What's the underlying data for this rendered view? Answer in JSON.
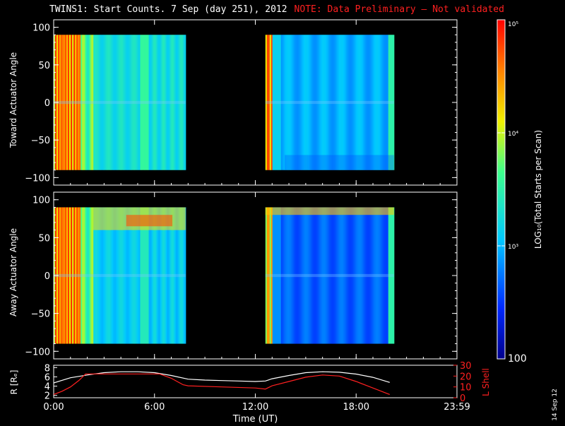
{
  "title": {
    "main": "TWINS1: Start Counts.  7 Sep (day 251), 2012",
    "note": "NOTE: Data Preliminary – Not validated"
  },
  "stamp": "14 Sep 12",
  "colors": {
    "background": "#000000",
    "axis": "#ffffff",
    "note": "#ff2020",
    "lshell": "#ff2020",
    "radius": "#ffffff"
  },
  "chart_data": [
    {
      "type": "heatmap",
      "name_label": "Toward Actuator Angle",
      "ylabel": "Toward Actuator Angle",
      "yticks": [
        "100",
        "50",
        "0",
        "−50",
        "−100"
      ],
      "ytick_values": [
        100,
        50,
        0,
        -50,
        -100
      ],
      "ylim": [
        -110,
        110
      ],
      "data_ylim": [
        -90,
        90
      ],
      "xlim_hours": [
        0,
        24
      ],
      "segments_hours": [
        [
          0,
          7.85
        ],
        [
          12.6,
          20.25
        ]
      ],
      "colormap": "rainbow",
      "log_scale": true
    },
    {
      "type": "heatmap",
      "name_label": "Away Actuator Angle",
      "ylabel": "Away Actuator Angle",
      "yticks": [
        "100",
        "50",
        "0",
        "−50",
        "−100"
      ],
      "ytick_values": [
        100,
        50,
        0,
        -50,
        -100
      ],
      "ylim": [
        -110,
        110
      ],
      "data_ylim": [
        -90,
        90
      ],
      "xlim_hours": [
        0,
        24
      ],
      "segments_hours": [
        [
          0,
          7.85
        ],
        [
          12.6,
          20.25
        ]
      ],
      "colormap": "rainbow",
      "log_scale": true
    },
    {
      "type": "line",
      "ylabel_left": "R [Rₑ]",
      "ylabel_right": "L Shell",
      "left_ticks": [
        "8",
        "6",
        "4",
        "2"
      ],
      "left_tick_values": [
        8,
        6,
        4,
        2
      ],
      "left_ylim": [
        1.5,
        8.5
      ],
      "right_ticks": [
        "30",
        "20",
        "10",
        "0"
      ],
      "right_tick_values": [
        30,
        20,
        10,
        0
      ],
      "right_ylim": [
        0,
        30
      ],
      "xlabel": "Time (UT)",
      "xticks": [
        "0:00",
        "6:00",
        "12:00",
        "18:00",
        "23:59"
      ],
      "xtick_values": [
        0,
        6,
        12,
        18,
        24
      ],
      "series": [
        {
          "axis": "left",
          "x": [
            0,
            1,
            2,
            3,
            4,
            5,
            6,
            7,
            8,
            9,
            10,
            11,
            12,
            12.6,
            13,
            14,
            15,
            16,
            17,
            18,
            19,
            20
          ],
          "y": [
            4.7,
            5.8,
            6.4,
            6.9,
            7.1,
            7.1,
            6.9,
            6.3,
            5.5,
            5.3,
            5.2,
            5.1,
            5.0,
            5.1,
            5.6,
            6.3,
            6.9,
            7.1,
            7.0,
            6.6,
            5.9,
            4.8
          ]
        },
        {
          "axis": "right",
          "x": [
            0,
            0.5,
            1,
            1.5,
            1.9,
            6,
            6.3,
            7,
            7.7,
            8,
            10,
            12,
            12.6,
            13,
            14,
            15,
            16,
            17,
            18,
            19,
            20
          ],
          "y": [
            3,
            6,
            10,
            16,
            22,
            22,
            22,
            18,
            12,
            11,
            10,
            9,
            8,
            11,
            15,
            19,
            21,
            20,
            15,
            9,
            3
          ]
        }
      ]
    },
    {
      "type": "colorbar",
      "label": "LOG₁₀(Total Starts per Scan)",
      "ticks": [
        "10⁵",
        "10⁴",
        "10³",
        "100"
      ],
      "tick_values": [
        100000,
        10000,
        1000,
        100
      ],
      "range": [
        100,
        100000
      ],
      "log_scale": true
    }
  ]
}
